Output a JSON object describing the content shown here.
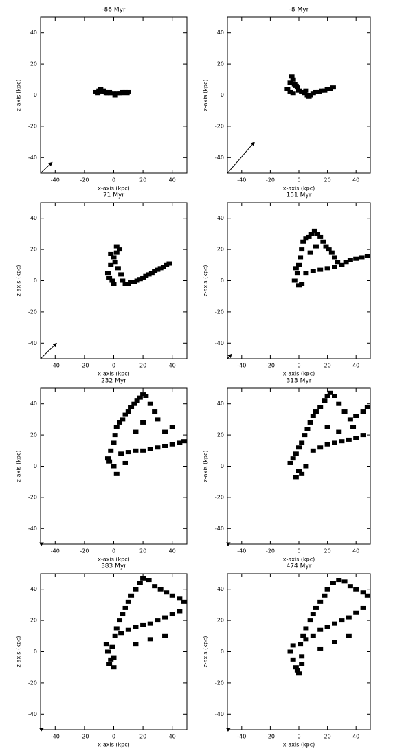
{
  "chart_data": [
    {
      "type": "scatter",
      "title": "-86 Myr",
      "xlabel": "x-axis (kpc)",
      "ylabel": "z-axis (kpc)",
      "xlim": [
        -50,
        50
      ],
      "ylim": [
        -50,
        50
      ],
      "xticks": [
        -40,
        -20,
        0,
        20,
        40
      ],
      "yticks": [
        -40,
        -20,
        0,
        20,
        40
      ],
      "color": "#000000",
      "x": [
        -12,
        -10,
        -8,
        -6,
        -4,
        -2,
        0,
        2,
        4,
        6,
        8,
        10,
        -11,
        -7,
        -3,
        1,
        5,
        9,
        -9,
        -5
      ],
      "y": [
        2,
        3,
        2,
        2,
        1,
        1,
        1,
        1,
        1,
        2,
        2,
        2,
        1,
        3,
        2,
        0,
        1,
        1,
        4,
        1
      ],
      "arrow": {
        "x": [
          -50,
          -42
        ],
        "y": [
          -50,
          -43
        ]
      }
    },
    {
      "type": "scatter",
      "title": "-8 Myr",
      "xlabel": "x-axis (kpc)",
      "ylabel": "z-axis (kpc)",
      "xlim": [
        -50,
        50
      ],
      "ylim": [
        -50,
        50
      ],
      "xticks": [
        -40,
        -20,
        0,
        20,
        40
      ],
      "yticks": [
        -40,
        -20,
        0,
        20,
        40
      ],
      "color": "#000000",
      "x": [
        -8,
        -6,
        -4,
        -2,
        0,
        2,
        4,
        6,
        8,
        10,
        12,
        14,
        16,
        18,
        20,
        22,
        24,
        -5,
        -3,
        -1,
        -6,
        -4,
        5,
        7
      ],
      "y": [
        4,
        8,
        10,
        6,
        3,
        2,
        1,
        0,
        0,
        1,
        2,
        2,
        3,
        3,
        4,
        4,
        5,
        12,
        7,
        5,
        2,
        1,
        3,
        -1
      ],
      "arrow": {
        "x": [
          -50,
          -31
        ],
        "y": [
          -50,
          -30
        ]
      }
    },
    {
      "type": "scatter",
      "title": "71 Myr",
      "xlabel": "x-axis (kpc)",
      "ylabel": "z-axis (kpc)",
      "xlim": [
        -50,
        50
      ],
      "ylim": [
        -50,
        50
      ],
      "xticks": [
        -40,
        -20,
        0,
        20,
        40
      ],
      "yticks": [
        -40,
        -20,
        0,
        20,
        40
      ],
      "color": "#000000",
      "x": [
        -4,
        -2,
        0,
        2,
        4,
        -3,
        -1,
        1,
        3,
        5,
        6,
        8,
        10,
        12,
        14,
        16,
        18,
        20,
        22,
        24,
        26,
        28,
        30,
        32,
        34,
        36,
        38,
        2,
        0,
        -2
      ],
      "y": [
        5,
        10,
        15,
        18,
        20,
        2,
        0,
        12,
        8,
        4,
        0,
        -2,
        -2,
        -1,
        -1,
        0,
        1,
        2,
        3,
        4,
        5,
        6,
        7,
        8,
        9,
        10,
        11,
        22,
        -2,
        17
      ],
      "arrow": {
        "x": [
          -50,
          -39
        ],
        "y": [
          -50,
          -40
        ]
      }
    },
    {
      "type": "scatter",
      "title": "151 Myr",
      "xlabel": "x-axis (kpc)",
      "ylabel": "z-axis (kpc)",
      "xlim": [
        -50,
        50
      ],
      "ylim": [
        -50,
        50
      ],
      "xticks": [
        -40,
        -20,
        0,
        20,
        40
      ],
      "yticks": [
        -40,
        -20,
        0,
        20,
        40
      ],
      "color": "#000000",
      "x": [
        -3,
        -1,
        0,
        1,
        2,
        3,
        5,
        7,
        9,
        11,
        13,
        15,
        17,
        19,
        21,
        23,
        25,
        27,
        30,
        33,
        36,
        40,
        44,
        48,
        5,
        10,
        15,
        20,
        25,
        8,
        12,
        0,
        2,
        -2
      ],
      "y": [
        0,
        5,
        10,
        15,
        20,
        25,
        27,
        28,
        30,
        32,
        30,
        28,
        25,
        22,
        20,
        18,
        15,
        12,
        10,
        12,
        13,
        14,
        15,
        16,
        5,
        6,
        7,
        8,
        9,
        18,
        22,
        -3,
        -2,
        8
      ],
      "arrow": {
        "x": [
          -50,
          -47
        ],
        "y": [
          -50,
          -47
        ]
      }
    },
    {
      "type": "scatter",
      "title": "232 Myr",
      "xlabel": "x-axis (kpc)",
      "ylabel": "z-axis (kpc)",
      "xlim": [
        -50,
        50
      ],
      "ylim": [
        -50,
        50
      ],
      "xticks": [
        -40,
        -20,
        0,
        20,
        40
      ],
      "yticks": [
        -40,
        -20,
        0,
        20,
        40
      ],
      "color": "#000000",
      "x": [
        -4,
        -2,
        0,
        1,
        2,
        4,
        6,
        8,
        10,
        12,
        14,
        16,
        18,
        20,
        22,
        25,
        28,
        30,
        5,
        10,
        15,
        20,
        25,
        30,
        35,
        40,
        45,
        48,
        0,
        2,
        -3,
        15,
        20,
        35,
        40,
        8
      ],
      "y": [
        5,
        10,
        15,
        20,
        25,
        28,
        30,
        33,
        35,
        38,
        40,
        42,
        44,
        46,
        45,
        40,
        35,
        30,
        8,
        9,
        10,
        10,
        11,
        12,
        13,
        14,
        15,
        16,
        0,
        -5,
        3,
        22,
        28,
        22,
        25,
        2
      ],
      "arrow": {
        "x": [
          -50,
          -48
        ],
        "y": [
          -50,
          -49
        ]
      }
    },
    {
      "type": "scatter",
      "title": "313 Myr",
      "xlabel": "x-axis (kpc)",
      "ylabel": "z-axis (kpc)",
      "xlim": [
        -50,
        50
      ],
      "ylim": [
        -50,
        50
      ],
      "xticks": [
        -40,
        -20,
        0,
        20,
        40
      ],
      "yticks": [
        -40,
        -20,
        0,
        20,
        40
      ],
      "color": "#000000",
      "x": [
        -6,
        -4,
        -2,
        0,
        2,
        4,
        6,
        8,
        10,
        12,
        15,
        18,
        20,
        22,
        25,
        28,
        32,
        36,
        40,
        45,
        48,
        10,
        15,
        20,
        25,
        30,
        35,
        40,
        45,
        0,
        -2,
        2,
        5,
        28,
        38,
        20
      ],
      "y": [
        2,
        5,
        8,
        12,
        15,
        20,
        24,
        28,
        32,
        35,
        38,
        42,
        45,
        47,
        45,
        40,
        35,
        30,
        32,
        35,
        38,
        10,
        12,
        14,
        15,
        16,
        17,
        18,
        20,
        -3,
        -7,
        -5,
        0,
        22,
        25,
        25
      ],
      "arrow": {
        "x": [
          -50,
          -48
        ],
        "y": [
          -50,
          -49
        ]
      }
    },
    {
      "type": "scatter",
      "title": "383 Myr",
      "xlabel": "x-axis (kpc)",
      "ylabel": "z-axis (kpc)",
      "xlim": [
        -50,
        50
      ],
      "ylim": [
        -50,
        50
      ],
      "xticks": [
        -40,
        -20,
        0,
        20,
        40
      ],
      "yticks": [
        -40,
        -20,
        0,
        20,
        40
      ],
      "color": "#000000",
      "x": [
        -5,
        -4,
        -2,
        0,
        1,
        2,
        4,
        6,
        8,
        10,
        12,
        15,
        18,
        20,
        24,
        28,
        32,
        36,
        40,
        45,
        48,
        5,
        10,
        15,
        20,
        25,
        30,
        35,
        40,
        45,
        -3,
        -1,
        0,
        15,
        25,
        35
      ],
      "y": [
        5,
        0,
        -5,
        -10,
        10,
        15,
        20,
        24,
        28,
        32,
        36,
        40,
        44,
        47,
        46,
        42,
        40,
        38,
        36,
        34,
        32,
        12,
        14,
        16,
        17,
        18,
        20,
        22,
        24,
        26,
        -8,
        3,
        -4,
        5,
        8,
        10
      ],
      "arrow": {
        "x": [
          -50,
          -48
        ],
        "y": [
          -50,
          -49
        ]
      }
    },
    {
      "type": "scatter",
      "title": "474 Myr",
      "xlabel": "x-axis (kpc)",
      "ylabel": "z-axis (kpc)",
      "xlim": [
        -50,
        50
      ],
      "ylim": [
        -50,
        50
      ],
      "xticks": [
        -40,
        -20,
        0,
        20,
        40
      ],
      "yticks": [
        -40,
        -20,
        0,
        20,
        40
      ],
      "color": "#000000",
      "x": [
        -6,
        -4,
        -2,
        0,
        2,
        1,
        3,
        5,
        8,
        10,
        12,
        15,
        18,
        20,
        24,
        28,
        32,
        36,
        40,
        45,
        48,
        5,
        10,
        15,
        20,
        25,
        30,
        35,
        40,
        45,
        -4,
        -1,
        2,
        15,
        25,
        35
      ],
      "y": [
        0,
        -5,
        -10,
        -14,
        -8,
        5,
        10,
        15,
        20,
        24,
        28,
        32,
        36,
        40,
        44,
        46,
        45,
        42,
        40,
        38,
        36,
        8,
        10,
        14,
        16,
        18,
        20,
        22,
        25,
        28,
        4,
        -12,
        -3,
        2,
        6,
        10
      ],
      "arrow": {
        "x": [
          -50,
          -48
        ],
        "y": [
          -50,
          -49
        ]
      }
    }
  ]
}
